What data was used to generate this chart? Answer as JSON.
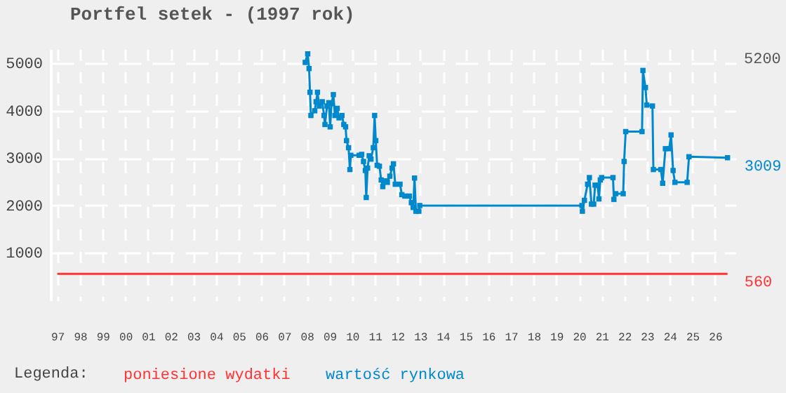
{
  "chart_data": {
    "type": "line",
    "title": "Portfel setek - (1997 rok)",
    "legend_title": "Legenda:",
    "legend": "bottom",
    "grid": true,
    "xlim": [
      1996.7,
      2026.9
    ],
    "ylim": [
      0,
      5300
    ],
    "yticks": [
      1000,
      2000,
      3000,
      4000,
      5000
    ],
    "xticks": [
      {
        "value": 1997,
        "label": "97"
      },
      {
        "value": 1998,
        "label": "98"
      },
      {
        "value": 1999,
        "label": "99"
      },
      {
        "value": 2000,
        "label": "00"
      },
      {
        "value": 2001,
        "label": "01"
      },
      {
        "value": 2002,
        "label": "02"
      },
      {
        "value": 2003,
        "label": "03"
      },
      {
        "value": 2004,
        "label": "04"
      },
      {
        "value": 2005,
        "label": "05"
      },
      {
        "value": 2006,
        "label": "06"
      },
      {
        "value": 2007,
        "label": "07"
      },
      {
        "value": 2008,
        "label": "08"
      },
      {
        "value": 2009,
        "label": "09"
      },
      {
        "value": 2010,
        "label": "10"
      },
      {
        "value": 2011,
        "label": "11"
      },
      {
        "value": 2012,
        "label": "12"
      },
      {
        "value": 2013,
        "label": "13"
      },
      {
        "value": 2014,
        "label": "14"
      },
      {
        "value": 2015,
        "label": "15"
      },
      {
        "value": 2016,
        "label": "16"
      },
      {
        "value": 2017,
        "label": "17"
      },
      {
        "value": 2018,
        "label": "18"
      },
      {
        "value": 2019,
        "label": "19"
      },
      {
        "value": 2020,
        "label": "20"
      },
      {
        "value": 2021,
        "label": "21"
      },
      {
        "value": 2022,
        "label": "22"
      },
      {
        "value": 2023,
        "label": "23"
      },
      {
        "value": 2024,
        "label": "24"
      },
      {
        "value": 2025,
        "label": "25"
      },
      {
        "value": 2026,
        "label": "26"
      }
    ],
    "annotations": [
      "5200"
    ],
    "series": [
      {
        "name": "poniesione wydatki",
        "color": "#ff3333",
        "marker": "none",
        "x": [
          1997,
          2026.55
        ],
        "values": [
          560,
          560
        ],
        "value_labels": [
          null,
          "560"
        ]
      },
      {
        "name": "wartość rynkowa",
        "color": "#0088cc",
        "marker": "square",
        "x": [
          2007.93,
          2008.04,
          2008.1,
          2008.14,
          2008.18,
          2008.35,
          2008.41,
          2008.47,
          2008.55,
          2008.68,
          2008.76,
          2008.8,
          2008.89,
          2008.97,
          2009.03,
          2009.09,
          2009.17,
          2009.24,
          2009.34,
          2009.42,
          2009.55,
          2009.63,
          2009.71,
          2009.75,
          2009.84,
          2009.9,
          2009.94,
          2010.31,
          2010.42,
          2010.5,
          2010.58,
          2010.62,
          2010.68,
          2010.75,
          2010.83,
          2010.93,
          2010.99,
          2011.04,
          2011.1,
          2011.2,
          2011.28,
          2011.35,
          2011.45,
          2011.55,
          2011.66,
          2011.76,
          2011.82,
          2011.9,
          2012.11,
          2012.19,
          2012.32,
          2012.52,
          2012.61,
          2012.69,
          2012.75,
          2012.81,
          2012.94,
          2012.98,
          2020.13,
          2020.15,
          2020.24,
          2020.38,
          2020.46,
          2020.55,
          2020.65,
          2020.71,
          2020.82,
          2020.88,
          2020.94,
          2021.0,
          2021.5,
          2021.54,
          2021.62,
          2021.95,
          2021.99,
          2022.06,
          2022.78,
          2022.82,
          2022.93,
          2022.99,
          2023.24,
          2023.28,
          2023.61,
          2023.69,
          2023.81,
          2023.98,
          2024.06,
          2024.15,
          2024.23,
          2024.77,
          2024.85,
          2026.55
        ],
        "values": [
          5020,
          5200,
          4890,
          4390,
          3900,
          4000,
          4190,
          4390,
          4100,
          4190,
          3900,
          3710,
          4100,
          4170,
          3660,
          4150,
          4340,
          3900,
          4050,
          3850,
          3900,
          3710,
          3660,
          3370,
          3220,
          2760,
          3060,
          3060,
          3080,
          2930,
          2740,
          2170,
          2790,
          3050,
          2980,
          3220,
          3900,
          3370,
          2850,
          2830,
          2540,
          2400,
          2520,
          2490,
          2620,
          2790,
          2880,
          2450,
          2450,
          2230,
          2200,
          2200,
          2060,
          1960,
          2580,
          1880,
          1880,
          2000,
          2000,
          1880,
          2110,
          2450,
          2590,
          2030,
          2030,
          2430,
          2430,
          2140,
          2540,
          2590,
          2590,
          2130,
          2250,
          2250,
          2930,
          3560,
          3560,
          4850,
          4490,
          4120,
          4100,
          2760,
          2760,
          2470,
          3200,
          3200,
          3490,
          2740,
          2490,
          2490,
          3030,
          3009
        ],
        "value_labels": [
          null,
          null,
          null,
          null,
          null,
          null,
          null,
          null,
          null,
          null,
          null,
          null,
          null,
          null,
          null,
          null,
          null,
          null,
          null,
          null,
          null,
          null,
          null,
          null,
          null,
          null,
          null,
          null,
          null,
          null,
          null,
          null,
          null,
          null,
          null,
          null,
          null,
          null,
          null,
          null,
          null,
          null,
          null,
          null,
          null,
          null,
          null,
          null,
          null,
          null,
          null,
          null,
          null,
          null,
          null,
          null,
          null,
          null,
          null,
          null,
          null,
          null,
          null,
          null,
          null,
          null,
          null,
          null,
          null,
          null,
          null,
          null,
          null,
          null,
          null,
          null,
          null,
          null,
          null,
          null,
          null,
          null,
          null,
          null,
          null,
          null,
          null,
          null,
          null,
          null,
          null,
          "3009"
        ]
      }
    ]
  }
}
